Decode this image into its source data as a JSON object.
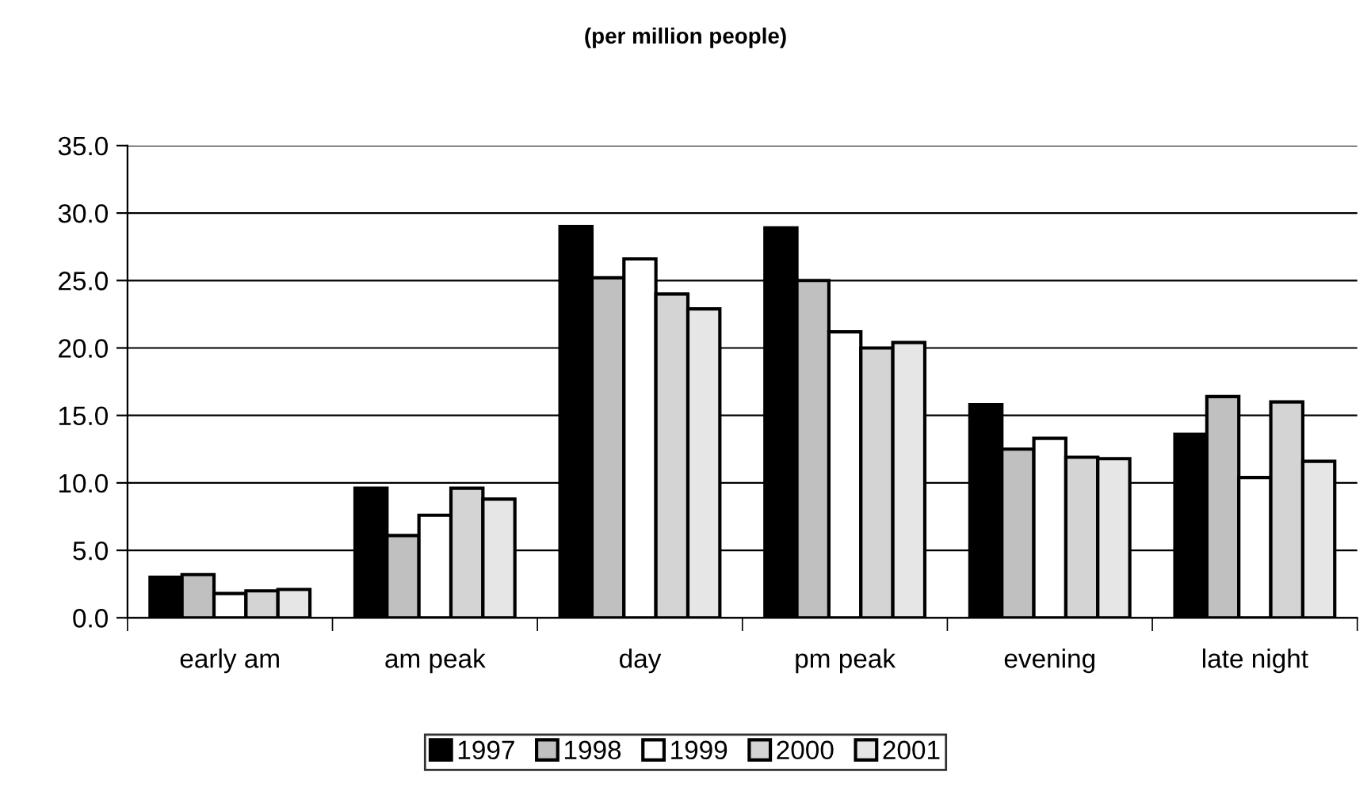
{
  "chart_data": {
    "type": "bar",
    "title": "(per million people)",
    "categories": [
      "early am",
      "am peak",
      "day",
      "pm peak",
      "evening",
      "late night"
    ],
    "series": [
      {
        "name": "1997",
        "color": "#000000",
        "values": [
          3.0,
          9.6,
          29.0,
          28.9,
          15.8,
          13.6
        ]
      },
      {
        "name": "1998",
        "color": "#c0c0c0",
        "values": [
          3.2,
          6.1,
          25.2,
          25.0,
          12.5,
          16.4
        ]
      },
      {
        "name": "1999",
        "color": "#ffffff",
        "values": [
          1.8,
          7.6,
          26.6,
          21.2,
          13.3,
          10.4
        ]
      },
      {
        "name": "2000",
        "color": "#d4d4d4",
        "values": [
          2.0,
          9.6,
          24.0,
          20.0,
          11.9,
          16.0
        ]
      },
      {
        "name": "2001",
        "color": "#e6e6e6",
        "values": [
          2.1,
          8.8,
          22.9,
          20.4,
          11.8,
          11.6
        ]
      }
    ],
    "ylim": [
      0,
      35
    ],
    "yticks": [
      {
        "value": 0,
        "label": "0.0"
      },
      {
        "value": 5,
        "label": "5.0"
      },
      {
        "value": 10,
        "label": "10.0"
      },
      {
        "value": 15,
        "label": "15.0"
      },
      {
        "value": 20,
        "label": "20.0"
      },
      {
        "value": 25,
        "label": "25.0"
      },
      {
        "value": 30,
        "label": "30.0"
      },
      {
        "value": 35,
        "label": "35.0"
      }
    ],
    "grid": "y",
    "legend": "bottom"
  }
}
